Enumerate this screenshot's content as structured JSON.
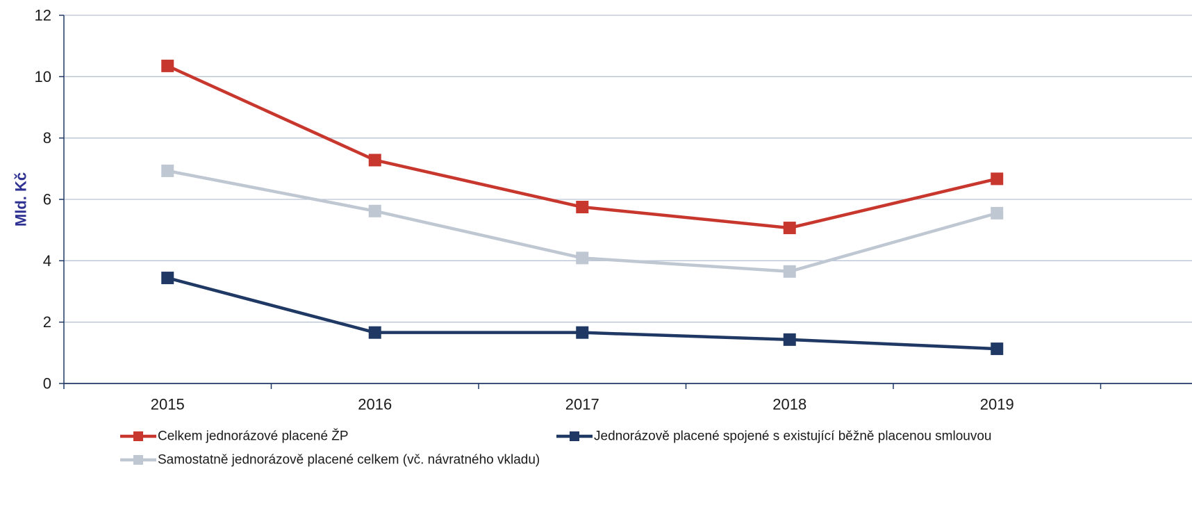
{
  "chart_data": {
    "type": "line",
    "title": "",
    "xlabel": "",
    "ylabel": "Mld. Kč",
    "categories": [
      "2015",
      "2016",
      "2017",
      "2018",
      "2019"
    ],
    "ylim": [
      0,
      12
    ],
    "yticks": [
      0,
      2,
      4,
      6,
      8,
      10,
      12
    ],
    "grid": "horizontal",
    "legend_position": "bottom",
    "series": [
      {
        "name": "Celkem jednorázové placené ŽP",
        "color": "#c8372d",
        "values": [
          10.35,
          7.28,
          5.75,
          5.07,
          6.67
        ]
      },
      {
        "name": "Jednorázově placené spojené s existující běžně placenou smlouvou",
        "color": "#1f3864",
        "values": [
          3.44,
          1.66,
          1.66,
          1.43,
          1.13
        ]
      },
      {
        "name": "Samostatně jednorázově placené celkem (vč. návratného vkladu)",
        "color": "#bfc7d2",
        "values": [
          6.93,
          5.62,
          4.09,
          3.65,
          5.55
        ]
      }
    ]
  }
}
